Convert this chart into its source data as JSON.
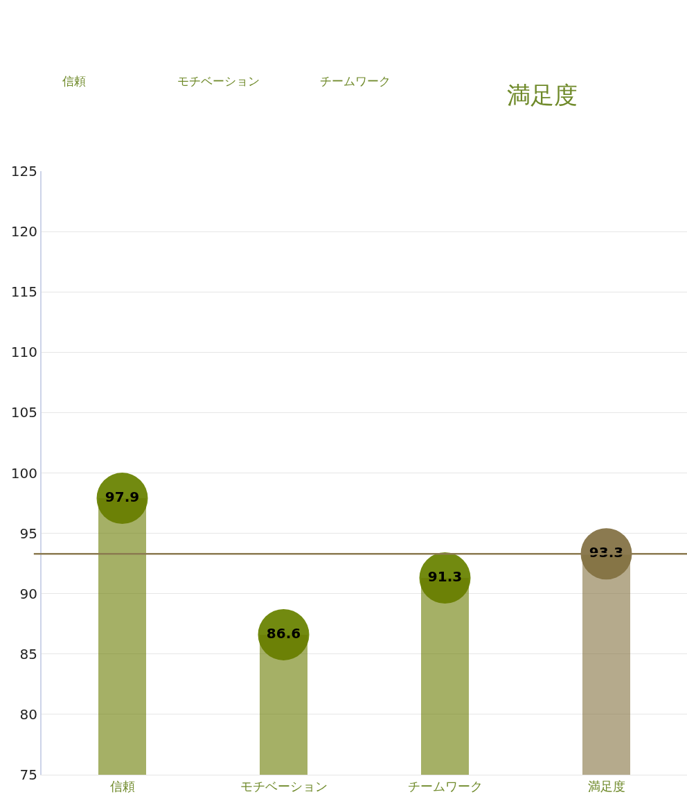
{
  "chart_data": {
    "type": "bar",
    "categories": [
      "信頼",
      "モチベーション",
      "チームワーク",
      "満足度"
    ],
    "series": [
      {
        "values": [
          97.9,
          86.6,
          91.3,
          93.3
        ],
        "colors": [
          "#a5b064",
          "#a5b064",
          "#a5b064",
          "#b5aa8c"
        ]
      },
      {
        "type": "scatter",
        "x": [
          "信頼",
          "モチベーション",
          "チームワーク",
          "満足度"
        ],
        "values": [
          97.9,
          86.6,
          91.3,
          93.3
        ],
        "colors": [
          "#728a10",
          "#728a10",
          "#728a10",
          "#8b7a50"
        ],
        "value_labels": [
          "97.9",
          "86.6",
          "91.3",
          "93.3"
        ]
      }
    ],
    "marker": "circle",
    "ylim": [
      75,
      125
    ],
    "yticks": [
      75,
      80,
      85,
      90,
      95,
      100,
      105,
      110,
      115,
      120,
      125
    ],
    "grid": "y",
    "ref_lines": [
      {
        "axis": "y",
        "value": 93.3,
        "color": "#8b7a50"
      }
    ],
    "annotations": [
      "信頼",
      "モチベーション",
      "チームワーク",
      "満足度"
    ]
  }
}
